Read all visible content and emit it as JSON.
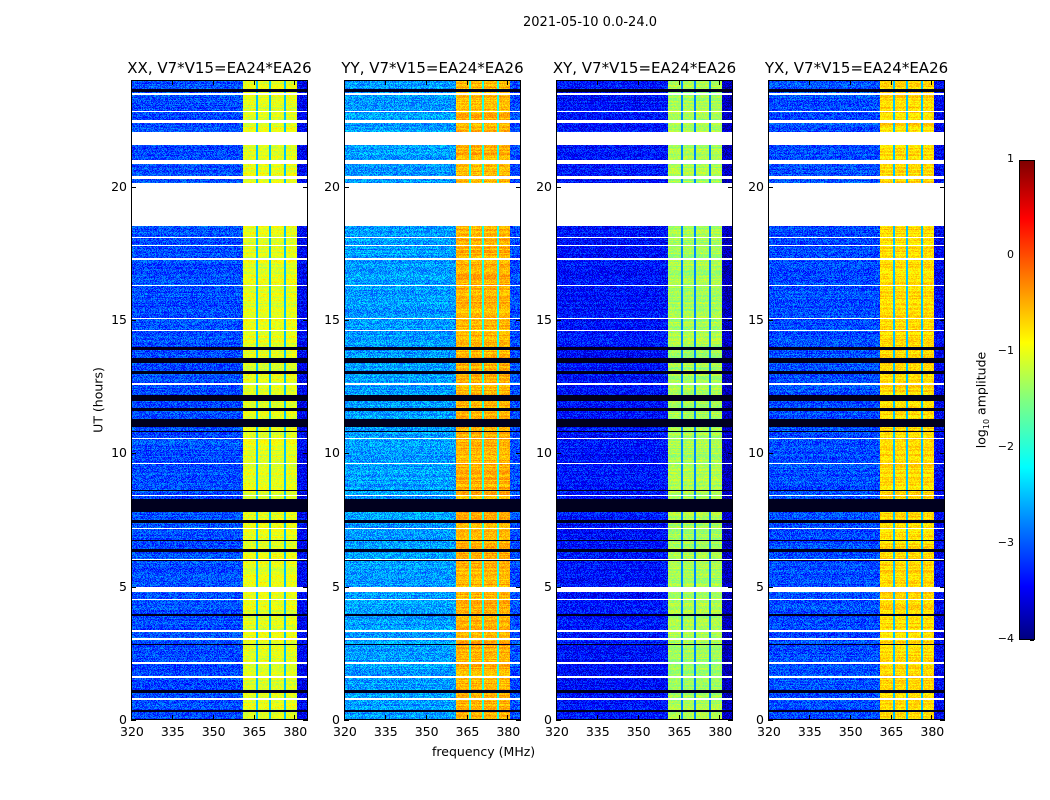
{
  "suptitle": "2021-05-10 0.0-24.0",
  "chart_data": {
    "type": "heatmap",
    "xlabel": "frequency (MHz)",
    "ylabel": "UT (hours)",
    "xlim": [
      320,
      385
    ],
    "ylim": [
      0,
      24
    ],
    "xticks": [
      320,
      335,
      350,
      365,
      380
    ],
    "yticks": [
      0,
      5,
      10,
      15,
      20
    ],
    "colorbar": {
      "label_prefix": "log",
      "label_sub": "10",
      "label_suffix": " amplitude",
      "range": [
        -4,
        1
      ],
      "ticks": [
        -4,
        -3,
        -2,
        -1,
        0,
        1
      ],
      "colormap": "jet"
    },
    "band_MHz": [
      361,
      381
    ],
    "band_dark_channels_MHz": [
      366.3,
      371.1,
      376.6
    ],
    "gaps_UT_hours": [
      [
        18.55,
        20.2
      ],
      [
        20.35,
        20.45
      ],
      [
        20.9,
        21.05
      ],
      [
        21.6,
        22.1
      ],
      [
        22.45,
        22.55
      ],
      [
        22.85,
        22.9
      ],
      [
        23.5,
        23.55
      ],
      [
        4.8,
        5.0
      ],
      [
        4.5,
        4.55
      ],
      [
        3.3,
        3.35
      ],
      [
        3.0,
        3.05
      ],
      [
        2.1,
        2.15
      ],
      [
        1.55,
        1.62
      ],
      [
        0.75,
        0.8
      ],
      [
        15.05,
        15.1
      ],
      [
        14.6,
        14.65
      ],
      [
        16.3,
        16.35
      ],
      [
        17.3,
        17.35
      ],
      [
        17.8,
        17.85
      ],
      [
        18.1,
        18.15
      ],
      [
        10.55,
        10.6
      ],
      [
        12.6,
        12.65
      ],
      [
        9.6,
        9.65
      ],
      [
        8.4,
        8.45
      ],
      [
        7.15,
        7.2
      ],
      [
        6.0,
        6.05
      ]
    ],
    "flagged_UT_hours": [
      [
        23.6,
        23.7
      ],
      [
        5.95,
        6.0
      ],
      [
        6.3,
        6.4
      ],
      [
        6.7,
        6.75
      ],
      [
        7.4,
        7.5
      ],
      [
        7.8,
        8.3
      ],
      [
        8.6,
        8.65
      ],
      [
        10.8,
        10.85
      ],
      [
        11.0,
        11.3
      ],
      [
        11.6,
        11.7
      ],
      [
        12.0,
        12.2
      ],
      [
        13.0,
        13.1
      ],
      [
        13.4,
        13.6
      ],
      [
        13.9,
        14.0
      ],
      [
        1.0,
        1.1
      ],
      [
        0.3,
        0.35
      ],
      [
        3.9,
        3.95
      ],
      [
        2.8,
        2.85
      ]
    ],
    "panels": [
      {
        "title": "XX, V7*V15=EA24*EA26",
        "background_log10": -3.0,
        "band_log10": -1.0
      },
      {
        "title": "YY, V7*V15=EA24*EA26",
        "background_log10": -2.6,
        "band_log10": -0.5
      },
      {
        "title": "XY, V7*V15=EA24*EA26",
        "background_log10": -3.3,
        "band_log10": -1.3
      },
      {
        "title": "YX, V7*V15=EA24*EA26",
        "background_log10": -3.0,
        "band_log10": -0.7
      }
    ]
  }
}
